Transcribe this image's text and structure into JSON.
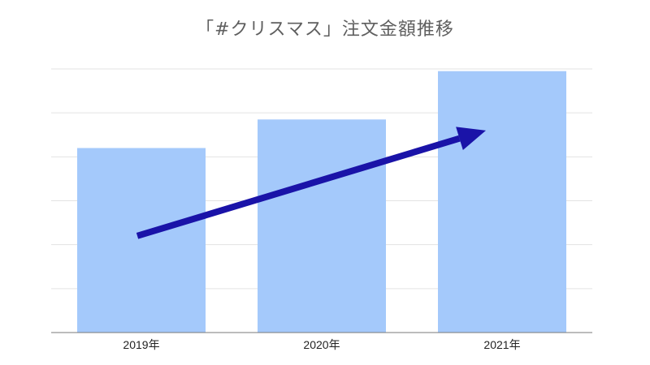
{
  "chart_data": {
    "type": "bar",
    "title": "「#クリスマス」注文金額推移",
    "xlabel": "",
    "ylabel": "",
    "categories": [
      "2019年",
      "2020年",
      "2021年"
    ],
    "values": [
      4.2,
      4.85,
      5.95
    ],
    "ylim": [
      0,
      6
    ],
    "grid": true,
    "legend": "none",
    "annotations": [
      {
        "type": "trend-arrow",
        "from": {
          "x": 0,
          "y": 2.2
        },
        "to": {
          "x": 2,
          "y": 4.6
        }
      }
    ]
  },
  "colors": {
    "bar": "#a4c9fb",
    "grid": "#e3e3e3",
    "axis": "#7a7a7a",
    "arrow": "#1a13a8",
    "title": "#5f5f5f"
  }
}
